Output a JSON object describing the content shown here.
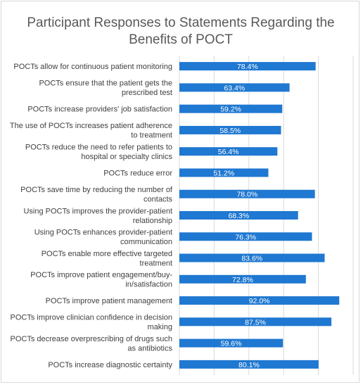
{
  "chart_data": {
    "type": "bar",
    "orientation": "horizontal",
    "title": "Participant Responses to Statements Regarding the Benefits of POCT",
    "title_lines": [
      "Participant Responses to Statements Regarding the",
      "Benefits of POCT"
    ],
    "categories": [
      "POCTs allow for continuous patient monitoring",
      "POCTs ensure that the patient gets the prescribed test",
      "POCTs increase providers' job satisfaction",
      "The use of POCTs increases patient adherence to treatment",
      "POCTs reduce the need to refer patients to hospital or specialty clinics",
      "POCTs reduce error",
      "POCTs save time by reducing the number of contacts",
      "Using POCTs improves the provider-patient relationship",
      "Using POCTs enhances provider-patient communication",
      "POCTs enable more effective targeted treatment",
      "POCTs improve patient engagement/buy-in/satisfaction",
      "POCTs improve patient management",
      "POCTs improve clinician confidence in decision making",
      "POCTs decrease overprescribing of drugs such as antibiotics",
      "POCTs increase diagnostic certainty"
    ],
    "category_lines": [
      [
        "POCTs allow for continuous patient monitoring"
      ],
      [
        "POCTs ensure that the patient gets the",
        "prescribed test"
      ],
      [
        "POCTs increase providers' job satisfaction"
      ],
      [
        "The use of POCTs increases patient adherence",
        "to treatment"
      ],
      [
        "POCTs reduce the need to refer patients to",
        "hospital or specialty clinics"
      ],
      [
        "POCTs reduce error"
      ],
      [
        "POCTs save time by reducing the number of",
        "contacts"
      ],
      [
        "Using POCTs improves the provider-patient",
        "relationship"
      ],
      [
        "Using POCTs enhances provider-patient",
        "communication"
      ],
      [
        "POCTs enable more effective targeted",
        "treatment"
      ],
      [
        "POCTs improve patient engagement/buy-",
        "in/satisfaction"
      ],
      [
        "POCTs improve patient management"
      ],
      [
        "POCTs improve clinician confidence in decision",
        "making"
      ],
      [
        "POCTs decrease overprescribing of drugs such",
        "as antibiotics"
      ],
      [
        "POCTs increase diagnostic certainty"
      ]
    ],
    "values": [
      78.4,
      63.4,
      59.2,
      58.5,
      56.4,
      51.2,
      78.0,
      68.3,
      76.3,
      83.6,
      72.8,
      92.0,
      87.5,
      59.6,
      80.1
    ],
    "data_labels": [
      "78.4%",
      "63.4%",
      "59.2%",
      "58.5%",
      "56.4%",
      "51.2%",
      "78.0%",
      "68.3%",
      "76.3%",
      "83.6%",
      "72.8%",
      "92.0%",
      "87.5%",
      "59.6%",
      "80.1%"
    ],
    "xlim": [
      0,
      100
    ],
    "x_gridlines": [
      0,
      20,
      40,
      60,
      80,
      100
    ],
    "grid": true,
    "legend": "none",
    "bar_color": "#1f78d1"
  }
}
